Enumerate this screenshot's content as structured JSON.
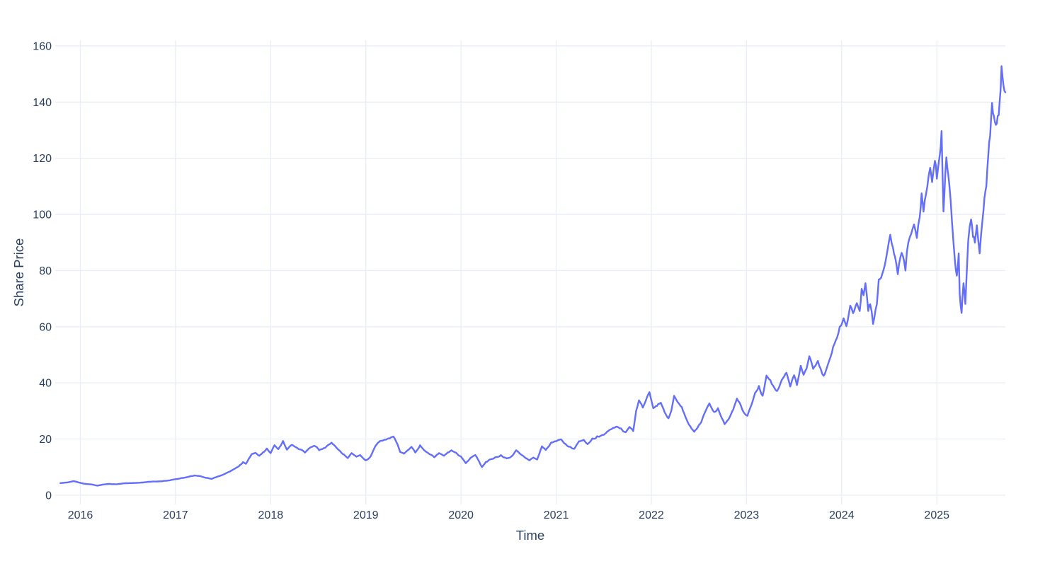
{
  "chart_data": {
    "type": "line",
    "title": "",
    "xlabel": "Time",
    "ylabel": "Share Price",
    "legend": "none",
    "grid": true,
    "x_tick_labels": [
      "2016",
      "2017",
      "2018",
      "2019",
      "2020",
      "2021",
      "2022",
      "2023",
      "2024",
      "2025"
    ],
    "x_tick_values": [
      2016,
      2017,
      2018,
      2019,
      2020,
      2021,
      2022,
      2023,
      2024,
      2025
    ],
    "y_tick_labels": [
      "0",
      "20",
      "40",
      "60",
      "80",
      "100",
      "120",
      "140",
      "160"
    ],
    "y_tick_values": [
      0,
      20,
      40,
      60,
      80,
      100,
      120,
      140,
      160
    ],
    "x_range": [
      2015.736,
      2025.72
    ],
    "y_range": [
      -3.3,
      162.0
    ],
    "colors": {
      "line": "#636efa",
      "grid": "#e9eef6",
      "text": "#2a3f5f",
      "background": "#ffffff"
    },
    "line_width": 2.4,
    "jitter": {
      "seed": 11,
      "step_years": 0.012,
      "amplitude_pct": 0.9,
      "smoothing": 0.8
    },
    "series": [
      {
        "name": "Share Price",
        "points": [
          [
            2015.79,
            4.3
          ],
          [
            2015.86,
            4.5
          ],
          [
            2015.93,
            5.0
          ],
          [
            2016.0,
            4.4
          ],
          [
            2016.06,
            4.0
          ],
          [
            2016.12,
            3.8
          ],
          [
            2016.18,
            3.4
          ],
          [
            2016.24,
            3.8
          ],
          [
            2016.3,
            4.0
          ],
          [
            2016.38,
            3.9
          ],
          [
            2016.45,
            4.2
          ],
          [
            2016.52,
            4.3
          ],
          [
            2016.6,
            4.4
          ],
          [
            2016.68,
            4.6
          ],
          [
            2016.74,
            4.8
          ],
          [
            2016.82,
            4.9
          ],
          [
            2016.88,
            5.1
          ],
          [
            2016.94,
            5.3
          ],
          [
            2017.04,
            5.9
          ],
          [
            2017.12,
            6.4
          ],
          [
            2017.2,
            7.0
          ],
          [
            2017.26,
            6.8
          ],
          [
            2017.32,
            6.2
          ],
          [
            2017.38,
            5.8
          ],
          [
            2017.44,
            6.6
          ],
          [
            2017.5,
            7.3
          ],
          [
            2017.57,
            8.4
          ],
          [
            2017.64,
            9.8
          ],
          [
            2017.68,
            10.8
          ],
          [
            2017.71,
            11.8
          ],
          [
            2017.74,
            11.2
          ],
          [
            2017.77,
            13.0
          ],
          [
            2017.8,
            14.6
          ],
          [
            2017.84,
            15.1
          ],
          [
            2017.88,
            14.0
          ],
          [
            2017.92,
            15.3
          ],
          [
            2017.96,
            16.6
          ],
          [
            2018.0,
            15.0
          ],
          [
            2018.04,
            17.8
          ],
          [
            2018.08,
            16.4
          ],
          [
            2018.13,
            19.3
          ],
          [
            2018.17,
            16.2
          ],
          [
            2018.22,
            17.9
          ],
          [
            2018.27,
            17.0
          ],
          [
            2018.32,
            16.2
          ],
          [
            2018.36,
            15.2
          ],
          [
            2018.41,
            16.8
          ],
          [
            2018.46,
            17.6
          ],
          [
            2018.51,
            16.0
          ],
          [
            2018.56,
            16.8
          ],
          [
            2018.6,
            17.8
          ],
          [
            2018.64,
            18.7
          ],
          [
            2018.68,
            17.4
          ],
          [
            2018.73,
            15.7
          ],
          [
            2018.77,
            14.5
          ],
          [
            2018.81,
            13.2
          ],
          [
            2018.85,
            15.0
          ],
          [
            2018.9,
            13.7
          ],
          [
            2018.94,
            14.3
          ],
          [
            2019.0,
            12.4
          ],
          [
            2019.05,
            13.8
          ],
          [
            2019.1,
            17.5
          ],
          [
            2019.15,
            19.3
          ],
          [
            2019.2,
            19.8
          ],
          [
            2019.25,
            20.2
          ],
          [
            2019.29,
            20.9
          ],
          [
            2019.32,
            19.0
          ],
          [
            2019.36,
            15.4
          ],
          [
            2019.4,
            14.8
          ],
          [
            2019.44,
            16.0
          ],
          [
            2019.48,
            17.2
          ],
          [
            2019.52,
            15.2
          ],
          [
            2019.57,
            17.8
          ],
          [
            2019.62,
            15.8
          ],
          [
            2019.67,
            14.6
          ],
          [
            2019.72,
            13.5
          ],
          [
            2019.77,
            15.0
          ],
          [
            2019.82,
            14.0
          ],
          [
            2019.86,
            15.2
          ],
          [
            2019.9,
            16.0
          ],
          [
            2019.95,
            15.1
          ],
          [
            2020.0,
            13.8
          ],
          [
            2020.05,
            11.4
          ],
          [
            2020.1,
            13.3
          ],
          [
            2020.15,
            14.3
          ],
          [
            2020.19,
            12.0
          ],
          [
            2020.22,
            10.0
          ],
          [
            2020.26,
            11.8
          ],
          [
            2020.3,
            12.7
          ],
          [
            2020.36,
            13.5
          ],
          [
            2020.42,
            14.3
          ],
          [
            2020.48,
            13.1
          ],
          [
            2020.53,
            13.8
          ],
          [
            2020.58,
            16.0
          ],
          [
            2020.63,
            14.5
          ],
          [
            2020.68,
            13.2
          ],
          [
            2020.72,
            12.4
          ],
          [
            2020.76,
            13.4
          ],
          [
            2020.8,
            12.7
          ],
          [
            2020.85,
            17.4
          ],
          [
            2020.89,
            16.1
          ],
          [
            2020.95,
            18.8
          ],
          [
            2021.0,
            19.2
          ],
          [
            2021.05,
            19.9
          ],
          [
            2021.1,
            18.2
          ],
          [
            2021.15,
            17.2
          ],
          [
            2021.19,
            16.5
          ],
          [
            2021.24,
            19.2
          ],
          [
            2021.29,
            19.7
          ],
          [
            2021.33,
            18.2
          ],
          [
            2021.38,
            20.2
          ],
          [
            2021.43,
            21.0
          ],
          [
            2021.5,
            21.5
          ],
          [
            2021.57,
            23.4
          ],
          [
            2021.63,
            24.4
          ],
          [
            2021.68,
            23.8
          ],
          [
            2021.73,
            22.4
          ],
          [
            2021.77,
            24.3
          ],
          [
            2021.81,
            22.8
          ],
          [
            2021.84,
            30.0
          ],
          [
            2021.87,
            33.8
          ],
          [
            2021.91,
            31.2
          ],
          [
            2021.95,
            34.5
          ],
          [
            2021.98,
            36.7
          ],
          [
            2022.02,
            31.0
          ],
          [
            2022.06,
            31.8
          ],
          [
            2022.1,
            32.9
          ],
          [
            2022.14,
            29.5
          ],
          [
            2022.18,
            27.4
          ],
          [
            2022.21,
            30.1
          ],
          [
            2022.24,
            35.4
          ],
          [
            2022.28,
            33.0
          ],
          [
            2022.32,
            31.4
          ],
          [
            2022.37,
            27.0
          ],
          [
            2022.41,
            24.5
          ],
          [
            2022.45,
            22.6
          ],
          [
            2022.5,
            25.0
          ],
          [
            2022.55,
            28.5
          ],
          [
            2022.61,
            32.7
          ],
          [
            2022.66,
            29.6
          ],
          [
            2022.7,
            31.0
          ],
          [
            2022.74,
            27.5
          ],
          [
            2022.77,
            25.3
          ],
          [
            2022.81,
            27.0
          ],
          [
            2022.86,
            30.5
          ],
          [
            2022.9,
            34.4
          ],
          [
            2022.94,
            32.0
          ],
          [
            2022.97,
            29.5
          ],
          [
            2023.01,
            28.3
          ],
          [
            2023.05,
            32.0
          ],
          [
            2023.09,
            36.4
          ],
          [
            2023.13,
            38.9
          ],
          [
            2023.17,
            35.4
          ],
          [
            2023.21,
            42.6
          ],
          [
            2023.25,
            41.0
          ],
          [
            2023.28,
            39.0
          ],
          [
            2023.32,
            37.1
          ],
          [
            2023.37,
            41.0
          ],
          [
            2023.42,
            43.6
          ],
          [
            2023.46,
            38.7
          ],
          [
            2023.5,
            42.7
          ],
          [
            2023.53,
            39.2
          ],
          [
            2023.57,
            46.1
          ],
          [
            2023.6,
            42.9
          ],
          [
            2023.63,
            45.0
          ],
          [
            2023.66,
            49.5
          ],
          [
            2023.7,
            45.0
          ],
          [
            2023.75,
            47.8
          ],
          [
            2023.78,
            45.0
          ],
          [
            2023.81,
            42.5
          ],
          [
            2023.86,
            47.0
          ],
          [
            2023.91,
            52.8
          ],
          [
            2023.95,
            56.0
          ],
          [
            2023.98,
            60.0
          ],
          [
            2024.02,
            63.0
          ],
          [
            2024.05,
            60.2
          ],
          [
            2024.09,
            67.5
          ],
          [
            2024.12,
            64.8
          ],
          [
            2024.16,
            68.4
          ],
          [
            2024.19,
            65.6
          ],
          [
            2024.21,
            73.5
          ],
          [
            2024.23,
            71.2
          ],
          [
            2024.25,
            75.5
          ],
          [
            2024.28,
            65.6
          ],
          [
            2024.3,
            68.0
          ],
          [
            2024.33,
            61.0
          ],
          [
            2024.37,
            68.0
          ],
          [
            2024.39,
            76.8
          ],
          [
            2024.44,
            80.2
          ],
          [
            2024.47,
            85.0
          ],
          [
            2024.51,
            92.7
          ],
          [
            2024.54,
            88.0
          ],
          [
            2024.56,
            85.0
          ],
          [
            2024.59,
            78.7
          ],
          [
            2024.63,
            86.3
          ],
          [
            2024.67,
            80.0
          ],
          [
            2024.7,
            89.9
          ],
          [
            2024.73,
            93.0
          ],
          [
            2024.76,
            96.4
          ],
          [
            2024.79,
            91.6
          ],
          [
            2024.82,
            99.0
          ],
          [
            2024.84,
            107.5
          ],
          [
            2024.86,
            101.0
          ],
          [
            2024.9,
            110.0
          ],
          [
            2024.93,
            116.6
          ],
          [
            2024.95,
            111.5
          ],
          [
            2024.98,
            119.1
          ],
          [
            2025.0,
            112.7
          ],
          [
            2025.03,
            121.0
          ],
          [
            2025.05,
            129.7
          ],
          [
            2025.07,
            101.0
          ],
          [
            2025.09,
            115.0
          ],
          [
            2025.1,
            120.3
          ],
          [
            2025.13,
            111.0
          ],
          [
            2025.16,
            97.0
          ],
          [
            2025.19,
            83.3
          ],
          [
            2025.21,
            78.2
          ],
          [
            2025.23,
            86.1
          ],
          [
            2025.24,
            71.5
          ],
          [
            2025.26,
            64.9
          ],
          [
            2025.28,
            75.5
          ],
          [
            2025.3,
            68.1
          ],
          [
            2025.33,
            90.8
          ],
          [
            2025.36,
            98.2
          ],
          [
            2025.38,
            92.0
          ],
          [
            2025.4,
            89.9
          ],
          [
            2025.42,
            96.1
          ],
          [
            2025.45,
            86.1
          ],
          [
            2025.48,
            98.0
          ],
          [
            2025.5,
            105.7
          ],
          [
            2025.52,
            110.0
          ],
          [
            2025.54,
            120.8
          ],
          [
            2025.56,
            128.0
          ],
          [
            2025.58,
            139.7
          ],
          [
            2025.6,
            135.0
          ],
          [
            2025.62,
            131.9
          ],
          [
            2025.64,
            135.1
          ],
          [
            2025.66,
            140.0
          ],
          [
            2025.68,
            152.8
          ],
          [
            2025.7,
            146.0
          ],
          [
            2025.72,
            143.5
          ]
        ]
      }
    ]
  }
}
